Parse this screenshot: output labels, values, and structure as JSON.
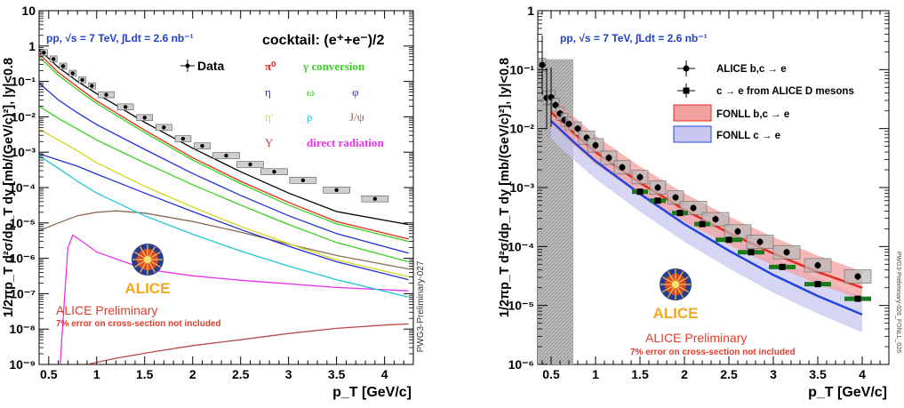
{
  "chart_data": [
    {
      "type": "line",
      "y_scale": "log",
      "xlim": [
        0.4,
        4.3
      ],
      "ylim": [
        1e-09,
        10
      ],
      "xlabel": "p_T [GeV/c]",
      "ylabel": "1/2πp_T d²σ/dp_T dy [mb/(GeV/c)²], |y|<0.8",
      "x_tick_labels": [
        "0.5",
        "1",
        "1.5",
        "2",
        "2.5",
        "3",
        "3.5",
        "4"
      ],
      "y_tick_labels": [
        "10⁻⁹",
        "10⁻⁸",
        "10⁻⁷",
        "10⁻⁶",
        "10⁻⁵",
        "10⁻⁴",
        "10⁻³",
        "10⁻²",
        "10⁻¹",
        "1",
        "10"
      ],
      "annotation_collision": "pp, √s = 7 TeV, ∫Ldt = 2.6 nb⁻¹",
      "annotation_cocktail": "cocktail: (e⁺+e⁻)/2",
      "side_label": "PWG3-Preliminary-027",
      "logo_text": "ALICE",
      "preliminary": "ALICE Preliminary",
      "error_note": "7% error on cross-section not included",
      "legend": [
        {
          "label": "Data",
          "color": "#000000",
          "marker": "point"
        },
        {
          "label": "π⁰",
          "color": "#e8291c"
        },
        {
          "label": "γ conversion",
          "color": "#3ad11f"
        },
        {
          "label": "η",
          "color": "#2131d6"
        },
        {
          "label": "ω",
          "color": "#3ad11f"
        },
        {
          "label": "φ",
          "color": "#2131d6"
        },
        {
          "label": "η'",
          "color": "#d6d61f"
        },
        {
          "label": "ρ",
          "color": "#1fc7d6"
        },
        {
          "label": "J/ψ",
          "color": "#8a6a55"
        },
        {
          "label": "Υ",
          "color": "#b84a4a"
        },
        {
          "label": "direct radiation",
          "color": "#e833e8"
        }
      ],
      "series": [
        {
          "name": "Data",
          "points": [
            [
              0.45,
              0.65
            ],
            [
              0.55,
              0.43
            ],
            [
              0.65,
              0.27
            ],
            [
              0.75,
              0.17
            ],
            [
              0.85,
              0.11
            ],
            [
              0.95,
              0.075
            ],
            [
              1.1,
              0.042
            ],
            [
              1.3,
              0.019
            ],
            [
              1.5,
              0.0095
            ],
            [
              1.7,
              0.005
            ],
            [
              1.9,
              0.0024
            ],
            [
              2.1,
              0.0015
            ],
            [
              2.35,
              0.0008
            ],
            [
              2.6,
              0.00045
            ],
            [
              2.85,
              0.00028
            ],
            [
              3.15,
              0.00016
            ],
            [
              3.5,
              8.5e-05
            ],
            [
              3.9,
              4.8e-05
            ]
          ]
        },
        {
          "name": "total cocktail",
          "color": "#000000",
          "points": [
            [
              0.4,
              0.8
            ],
            [
              0.6,
              0.25
            ],
            [
              0.8,
              0.1
            ],
            [
              1.0,
              0.045
            ],
            [
              1.5,
              0.007
            ],
            [
              2.0,
              0.0013
            ],
            [
              2.5,
              0.00028
            ],
            [
              3.0,
              7e-05
            ],
            [
              3.5,
              2.1e-05
            ],
            [
              4.25,
              9e-06
            ]
          ]
        },
        {
          "name": "π⁰",
          "color": "#e8291c",
          "points": [
            [
              0.4,
              0.6
            ],
            [
              0.6,
              0.18
            ],
            [
              0.8,
              0.07
            ],
            [
              1.0,
              0.028
            ],
            [
              1.5,
              0.0042
            ],
            [
              2.0,
              0.0007
            ],
            [
              2.5,
              0.00015
            ],
            [
              3.0,
              3.8e-05
            ],
            [
              3.5,
              1.1e-05
            ],
            [
              4.25,
              3.5e-06
            ]
          ]
        },
        {
          "name": "γ conversion",
          "color": "#3ad11f",
          "points": [
            [
              0.4,
              0.5
            ],
            [
              0.6,
              0.15
            ],
            [
              0.8,
              0.058
            ],
            [
              1.0,
              0.024
            ],
            [
              1.5,
              0.0036
            ],
            [
              2.0,
              0.0006
            ],
            [
              2.5,
              0.00013
            ],
            [
              3.0,
              3.2e-05
            ],
            [
              3.5,
              9.5e-06
            ],
            [
              4.25,
              3e-06
            ]
          ]
        },
        {
          "name": "η",
          "color": "#2131d6",
          "points": [
            [
              0.4,
              0.09
            ],
            [
              0.6,
              0.03
            ],
            [
              0.8,
              0.013
            ],
            [
              1.0,
              0.006
            ],
            [
              1.5,
              0.0012
            ],
            [
              2.0,
              0.00025
            ],
            [
              2.5,
              6e-05
            ],
            [
              3.0,
              1.6e-05
            ],
            [
              3.5,
              5e-06
            ],
            [
              4.25,
              1.4e-06
            ]
          ]
        },
        {
          "name": "ω",
          "color": "#3ad11f",
          "points": [
            [
              0.4,
              0.02
            ],
            [
              0.6,
              0.009
            ],
            [
              0.8,
              0.0045
            ],
            [
              1.0,
              0.0022
            ],
            [
              1.5,
              0.0005
            ],
            [
              2.0,
              0.00012
            ],
            [
              2.5,
              3.2e-05
            ],
            [
              3.0,
              9e-06
            ],
            [
              3.5,
              2.8e-06
            ],
            [
              4.25,
              8e-07
            ]
          ]
        },
        {
          "name": "φ",
          "color": "#2131d6",
          "points": [
            [
              0.4,
              0.0009
            ],
            [
              0.6,
              0.0006
            ],
            [
              0.8,
              0.0004
            ],
            [
              1.0,
              0.00024
            ],
            [
              1.5,
              7e-05
            ],
            [
              2.0,
              2.1e-05
            ],
            [
              2.5,
              6.5e-06
            ],
            [
              3.0,
              2.2e-06
            ],
            [
              3.5,
              8e-07
            ],
            [
              4.25,
              2.5e-07
            ]
          ]
        },
        {
          "name": "η'",
          "color": "#d6d61f",
          "points": [
            [
              0.4,
              0.0045
            ],
            [
              0.6,
              0.0022
            ],
            [
              0.8,
              0.0011
            ],
            [
              1.0,
              0.0005
            ],
            [
              1.5,
              0.00011
            ],
            [
              2.0,
              2.8e-05
            ],
            [
              2.5,
              8e-06
            ],
            [
              3.0,
              2.6e-06
            ],
            [
              3.5,
              9e-07
            ],
            [
              4.25,
              3e-07
            ]
          ]
        },
        {
          "name": "ρ",
          "color": "#1fc7d6",
          "points": [
            [
              0.4,
              0.0008
            ],
            [
              0.6,
              0.00035
            ],
            [
              0.8,
              0.00015
            ],
            [
              1.0,
              7e-05
            ],
            [
              1.5,
              1.6e-05
            ],
            [
              2.0,
              4.8e-06
            ],
            [
              2.5,
              1.6e-06
            ],
            [
              3.0,
              6e-07
            ],
            [
              3.5,
              2.5e-07
            ],
            [
              4.25,
              8e-08
            ]
          ]
        },
        {
          "name": "J/ψ",
          "color": "#8a6a55",
          "points": [
            [
              0.4,
              6e-06
            ],
            [
              0.6,
              1e-05
            ],
            [
              0.8,
              1.6e-05
            ],
            [
              1.0,
              2e-05
            ],
            [
              1.2,
              2.2e-05
            ],
            [
              1.5,
              1.9e-05
            ],
            [
              2.0,
              1.1e-05
            ],
            [
              2.5,
              5.5e-06
            ],
            [
              3.0,
              2.5e-06
            ],
            [
              3.5,
              1.2e-06
            ],
            [
              4.25,
              5e-07
            ]
          ]
        },
        {
          "name": "Υ",
          "color": "#b84a4a",
          "points": [
            [
              0.9,
              1e-09
            ],
            [
              1.2,
              1.5e-09
            ],
            [
              1.6,
              2.3e-09
            ],
            [
              2.0,
              3.4e-09
            ],
            [
              2.5,
              5e-09
            ],
            [
              3.0,
              7.5e-09
            ],
            [
              3.5,
              1.05e-08
            ],
            [
              4.0,
              1.3e-08
            ],
            [
              4.25,
              1.4e-08
            ]
          ]
        },
        {
          "name": "direct radiation",
          "color": "#e833e8",
          "points": [
            [
              0.62,
              1e-09
            ],
            [
              0.66,
              5e-08
            ],
            [
              0.7,
              2e-06
            ],
            [
              0.75,
              4.5e-06
            ],
            [
              0.85,
              3e-06
            ],
            [
              1.0,
              1.5e-06
            ],
            [
              1.5,
              5e-07
            ],
            [
              2.0,
              3.2e-07
            ],
            [
              2.5,
              2.4e-07
            ],
            [
              3.0,
              1.9e-07
            ],
            [
              3.5,
              1.5e-07
            ],
            [
              4.25,
              1.2e-07
            ]
          ]
        }
      ]
    },
    {
      "type": "scatter",
      "y_scale": "log",
      "xlim": [
        0.35,
        4.3
      ],
      "ylim": [
        1e-06,
        1
      ],
      "xlabel": "p_T [GeV/c]",
      "ylabel": "1/2πp_T d²σ/dp_T dy [mb/(GeV/c)²], |y|<0.8",
      "x_tick_labels": [
        "0.5",
        "1",
        "1.5",
        "2",
        "2.5",
        "3",
        "3.5",
        "4"
      ],
      "y_tick_labels": [
        "10⁻⁶",
        "10⁻⁵",
        "10⁻⁴",
        "10⁻³",
        "10⁻²",
        "10⁻¹",
        "1"
      ],
      "annotation_collision": "pp, √s = 7 TeV, ∫Ldt = 2.6 nb⁻¹",
      "side_label": "PWG3-Preliminary-026_FONLL_026",
      "logo_text": "ALICE",
      "preliminary": "ALICE Preliminary",
      "error_note": "7% error on cross-section not included",
      "legend": [
        {
          "label": "ALICE b,c → e",
          "marker": "circle"
        },
        {
          "label": "c → e from ALICE D mesons",
          "marker": "square"
        },
        {
          "label": "FONLL b,c → e",
          "color": "#f2a0a0"
        },
        {
          "label": "FONLL c → e",
          "color": "#c8c8f0"
        }
      ],
      "series": [
        {
          "name": "ALICE b,c → e",
          "points": [
            [
              0.4,
              0.12
            ],
            [
              0.45,
              0.033
            ],
            [
              0.5,
              0.034
            ],
            [
              0.55,
              0.025
            ],
            [
              0.6,
              0.018
            ],
            [
              0.65,
              0.014
            ],
            [
              0.7,
              0.012
            ],
            [
              0.8,
              0.01
            ],
            [
              0.9,
              0.007
            ],
            [
              1.0,
              0.0052
            ],
            [
              1.15,
              0.0032
            ],
            [
              1.3,
              0.0022
            ],
            [
              1.5,
              0.0015
            ],
            [
              1.7,
              0.001
            ],
            [
              1.9,
              0.00068
            ],
            [
              2.1,
              0.00045
            ],
            [
              2.35,
              0.00029
            ],
            [
              2.6,
              0.00018
            ],
            [
              2.85,
              0.00012
            ],
            [
              3.15,
              8e-05
            ],
            [
              3.5,
              4.8e-05
            ],
            [
              3.95,
              3.1e-05
            ]
          ]
        },
        {
          "name": "c → e from ALICE D mesons",
          "points": [
            [
              1.5,
              0.00085
            ],
            [
              1.7,
              0.0006
            ],
            [
              1.95,
              0.00037
            ],
            [
              2.2,
              0.00024
            ],
            [
              2.5,
              0.00013
            ],
            [
              2.75,
              8e-05
            ],
            [
              3.1,
              4.5e-05
            ],
            [
              3.5,
              2.3e-05
            ],
            [
              3.95,
              1.3e-05
            ]
          ]
        },
        {
          "name": "FONLL b,c → e",
          "points": [
            [
              0.5,
              0.019
            ],
            [
              0.75,
              0.0085
            ],
            [
              1.0,
              0.004
            ],
            [
              1.5,
              0.0012
            ],
            [
              2.0,
              0.00042
            ],
            [
              2.5,
              0.00017
            ],
            [
              3.0,
              7.6e-05
            ],
            [
              3.5,
              3.7e-05
            ],
            [
              4.0,
              2e-05
            ]
          ]
        },
        {
          "name": "FONLL c → e",
          "points": [
            [
              0.5,
              0.0135
            ],
            [
              0.75,
              0.006
            ],
            [
              1.0,
              0.0028
            ],
            [
              1.5,
              0.00078
            ],
            [
              2.0,
              0.00024
            ],
            [
              2.5,
              8.5e-05
            ],
            [
              3.0,
              3.3e-05
            ],
            [
              3.5,
              1.45e-05
            ],
            [
              4.0,
              7e-06
            ]
          ]
        }
      ]
    }
  ]
}
